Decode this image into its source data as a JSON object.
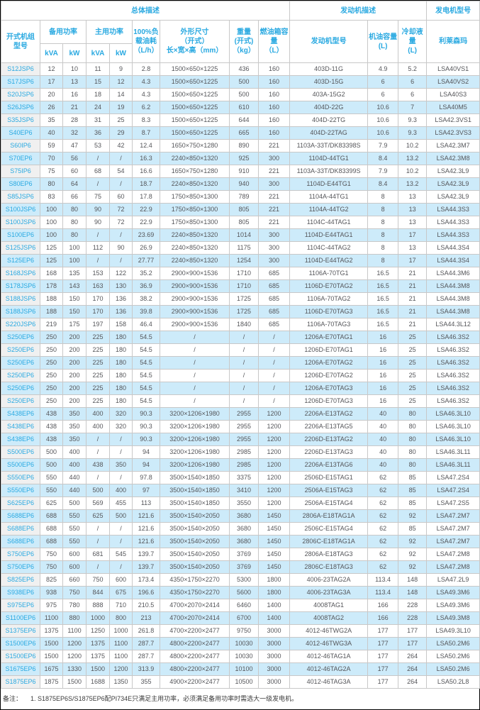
{
  "colors": {
    "accent": "#29a9e1",
    "stripe_blue": "#cdebfa",
    "model_column_bg": "#f0f0f0",
    "grid_border": "#c8c8c8",
    "data_text": "#55565a"
  },
  "table": {
    "group_headers": {
      "overall": "总体描述",
      "engine": "发动机描述",
      "alternator": "发电机型号"
    },
    "headers": {
      "model": "开式机组\n型号",
      "standby_power": "备用功率",
      "prime_power": "主用功率",
      "kva": "kVA",
      "kw": "kW",
      "fuel_consumption": "100%负\n载油耗\n（L/h）",
      "dimensions": "外形尺寸\n（开式）\n长×宽×高（mm）",
      "weight": "重量\n(开式)\n（kg）",
      "fuel_tank": "燃油箱容\n量\n（L）",
      "engine_model": "发动机型号",
      "oil_capacity": "机油容量\n(L)",
      "coolant_capacity": "冷却液量\n(L)",
      "alternator_brand": "利莱森玛"
    },
    "rows": [
      [
        "S12JSP6",
        "12",
        "10",
        "11",
        "9",
        "2.8",
        "1500×650×1225",
        "436",
        "160",
        "403D-11G",
        "4.9",
        "5.2",
        "LSA40VS1"
      ],
      [
        "S17JSP6",
        "17",
        "13",
        "15",
        "12",
        "4.3",
        "1500×650×1225",
        "500",
        "160",
        "403D-15G",
        "6",
        "6",
        "LSA40VS2"
      ],
      [
        "S20JSP6",
        "20",
        "16",
        "18",
        "14",
        "4.3",
        "1500×650×1225",
        "500",
        "160",
        "403A-15G2",
        "6",
        "6",
        "LSA40S3"
      ],
      [
        "S26JSP6",
        "26",
        "21",
        "24",
        "19",
        "6.2",
        "1500×650×1225",
        "610",
        "160",
        "404D-22G",
        "10.6",
        "7",
        "LSA40M5"
      ],
      [
        "S35JSP6",
        "35",
        "28",
        "31",
        "25",
        "8.3",
        "1500×650×1225",
        "644",
        "160",
        "404D-22TG",
        "10.6",
        "9.3",
        "LSA42.3VS1"
      ],
      [
        "S40EP6",
        "40",
        "32",
        "36",
        "29",
        "8.7",
        "1500×650×1225",
        "665",
        "160",
        "404D-22TAG",
        "10.6",
        "9.3",
        "LSA42.3VS3"
      ],
      [
        "S60IP6",
        "59",
        "47",
        "53",
        "42",
        "12.4",
        "1650×750×1280",
        "890",
        "221",
        "1103A-33T/DK83398S",
        "7.9",
        "10.2",
        "LSA42.3M7"
      ],
      [
        "S70EP6",
        "70",
        "56",
        "/",
        "/",
        "16.3",
        "2240×850×1320",
        "925",
        "300",
        "1104D-44TG1",
        "8.4",
        "13.2",
        "LSA42.3M8"
      ],
      [
        "S75IP6",
        "75",
        "60",
        "68",
        "54",
        "16.6",
        "1650×750×1280",
        "910",
        "221",
        "1103A-33T/DK83399S",
        "7.9",
        "10.2",
        "LSA42.3L9"
      ],
      [
        "S80EP6",
        "80",
        "64",
        "/",
        "/",
        "18.7",
        "2240×850×1320",
        "940",
        "300",
        "1104D-E44TG1",
        "8.4",
        "13.2",
        "LSA42.3L9"
      ],
      [
        "S85JSP6",
        "83",
        "66",
        "75",
        "60",
        "17.8",
        "1750×850×1300",
        "789",
        "221",
        "1104A-44TG1",
        "8",
        "13",
        "LSA42.3L9"
      ],
      [
        "S100JSP6",
        "100",
        "80",
        "90",
        "72",
        "22.9",
        "1750×850×1300",
        "805",
        "221",
        "1104A-44TG2",
        "8",
        "13",
        "LSA44.3S3"
      ],
      [
        "S100JSP6",
        "100",
        "80",
        "90",
        "72",
        "22.9",
        "1750×850×1300",
        "805",
        "221",
        "1104C-44TAG1",
        "8",
        "13",
        "LSA44.3S3"
      ],
      [
        "S100EP6",
        "100",
        "80",
        "/",
        "/",
        "23.69",
        "2240×850×1320",
        "1014",
        "300",
        "1104D-E44TAG1",
        "8",
        "17",
        "LSA44.3S3"
      ],
      [
        "S125JSP6",
        "125",
        "100",
        "112",
        "90",
        "26.9",
        "2240×850×1320",
        "1175",
        "300",
        "1104C-44TAG2",
        "8",
        "13",
        "LSA44.3S4"
      ],
      [
        "S125EP6",
        "125",
        "100",
        "/",
        "/",
        "27.77",
        "2240×850×1320",
        "1254",
        "300",
        "1104D-E44TAG2",
        "8",
        "17",
        "LSA44.3S4"
      ],
      [
        "S168JSP6",
        "168",
        "135",
        "153",
        "122",
        "35.2",
        "2900×900×1536",
        "1710",
        "685",
        "1106A-70TG1",
        "16.5",
        "21",
        "LSA44.3M6"
      ],
      [
        "S178JSP6",
        "178",
        "143",
        "163",
        "130",
        "36.9",
        "2900×900×1536",
        "1710",
        "685",
        "1106D-E70TAG2",
        "16.5",
        "21",
        "LSA44.3M8"
      ],
      [
        "S188JSP6",
        "188",
        "150",
        "170",
        "136",
        "38.2",
        "2900×900×1536",
        "1725",
        "685",
        "1106A-70TAG2",
        "16.5",
        "21",
        "LSA44.3M8"
      ],
      [
        "S188JSP6",
        "188",
        "150",
        "170",
        "136",
        "39.8",
        "2900×900×1536",
        "1725",
        "685",
        "1106D-E70TAG3",
        "16.5",
        "21",
        "LSA44.3M8"
      ],
      [
        "S220JSP6",
        "219",
        "175",
        "197",
        "158",
        "46.4",
        "2900×900×1536",
        "1840",
        "685",
        "1106A-70TAG3",
        "16.5",
        "21",
        "LSA44.3L12"
      ],
      [
        "S250EP6",
        "250",
        "200",
        "225",
        "180",
        "54.5",
        "/",
        "/",
        "/",
        "1206A-E70TAG1",
        "16",
        "25",
        "LSA46.3S2"
      ],
      [
        "S250EP6",
        "250",
        "200",
        "225",
        "180",
        "54.5",
        "/",
        "/",
        "/",
        "1206D-E70TAG1",
        "16",
        "25",
        "LSA46.3S2"
      ],
      [
        "S250EP6",
        "250",
        "200",
        "225",
        "180",
        "54.5",
        "/",
        "/",
        "/",
        "1206A-E70TAG2",
        "16",
        "25",
        "LSA46.3S2"
      ],
      [
        "S250EP6",
        "250",
        "200",
        "225",
        "180",
        "54.5",
        "/",
        "/",
        "/",
        "1206D-E70TAG2",
        "16",
        "25",
        "LSA46.3S2"
      ],
      [
        "S250EP6",
        "250",
        "200",
        "225",
        "180",
        "54.5",
        "/",
        "/",
        "/",
        "1206A-E70TAG3",
        "16",
        "25",
        "LSA46.3S2"
      ],
      [
        "S250EP6",
        "250",
        "200",
        "225",
        "180",
        "54.5",
        "/",
        "/",
        "/",
        "1206D-E70TAG3",
        "16",
        "25",
        "LSA46.3S2"
      ],
      [
        "S438EP6",
        "438",
        "350",
        "400",
        "320",
        "90.3",
        "3200×1206×1980",
        "2955",
        "1200",
        "2206A-E13TAG2",
        "40",
        "80",
        "LSA46.3L10"
      ],
      [
        "S438EP6",
        "438",
        "350",
        "400",
        "320",
        "90.3",
        "3200×1206×1980",
        "2955",
        "1200",
        "2206A-E13TAG5",
        "40",
        "80",
        "LSA46.3L10"
      ],
      [
        "S438EP6",
        "438",
        "350",
        "/",
        "/",
        "90.3",
        "3200×1206×1980",
        "2955",
        "1200",
        "2206D-E13TAG2",
        "40",
        "80",
        "LSA46.3L10"
      ],
      [
        "S500EP6",
        "500",
        "400",
        "/",
        "/",
        "94",
        "3200×1206×1980",
        "2985",
        "1200",
        "2206D-E13TAG3",
        "40",
        "80",
        "LSA46.3L11"
      ],
      [
        "S500EP6",
        "500",
        "400",
        "438",
        "350",
        "94",
        "3200×1206×1980",
        "2985",
        "1200",
        "2206A-E13TAG6",
        "40",
        "80",
        "LSA46.3L11"
      ],
      [
        "S550EP6",
        "550",
        "440",
        "/",
        "/",
        "97.8",
        "3500×1540×1850",
        "3375",
        "1200",
        "2506D-E15TAG1",
        "62",
        "85",
        "LSA47.2S4"
      ],
      [
        "S550EP6",
        "550",
        "440",
        "500",
        "400",
        "97",
        "3500×1540×1850",
        "3410",
        "1200",
        "2506A-E15TAG3",
        "62",
        "85",
        "LSA47.2S4"
      ],
      [
        "S625EP6",
        "625",
        "500",
        "569",
        "455",
        "113",
        "3500×1540×1850",
        "3550",
        "1200",
        "2506A-E15TAG4",
        "62",
        "85",
        "LSA47.2S5"
      ],
      [
        "S688EP6",
        "688",
        "550",
        "625",
        "500",
        "121.6",
        "3500×1540×2050",
        "3680",
        "1450",
        "2806A-E18TAG1A",
        "62",
        "92",
        "LSA47.2M7"
      ],
      [
        "S688EP6",
        "688",
        "550",
        "/",
        "/",
        "121.6",
        "3500×1540×2050",
        "3680",
        "1450",
        "2506C-E15TAG4",
        "62",
        "85",
        "LSA47.2M7"
      ],
      [
        "S688EP6",
        "688",
        "550",
        "/",
        "/",
        "121.6",
        "3500×1540×2050",
        "3680",
        "1450",
        "2806C-E18TAG1A",
        "62",
        "92",
        "LSA47.2M7"
      ],
      [
        "S750EP6",
        "750",
        "600",
        "681",
        "545",
        "139.7",
        "3500×1540×2050",
        "3769",
        "1450",
        "2806A-E18TAG3",
        "62",
        "92",
        "LSA47.2M8"
      ],
      [
        "S750EP6",
        "750",
        "600",
        "/",
        "/",
        "139.7",
        "3500×1540×2050",
        "3769",
        "1450",
        "2806C-E18TAG3",
        "62",
        "92",
        "LSA47.2M8"
      ],
      [
        "S825EP6",
        "825",
        "660",
        "750",
        "600",
        "173.4",
        "4350×1750×2270",
        "5300",
        "1800",
        "4006-23TAG2A",
        "113.4",
        "148",
        "LSA47.2L9"
      ],
      [
        "S938EP6",
        "938",
        "750",
        "844",
        "675",
        "196.6",
        "4350×1750×2270",
        "5600",
        "1800",
        "4006-23TAG3A",
        "113.4",
        "148",
        "LSA49.3M6"
      ],
      [
        "S975EP6",
        "975",
        "780",
        "888",
        "710",
        "210.5",
        "4700×2070×2414",
        "6460",
        "1400",
        "4008TAG1",
        "166",
        "228",
        "LSA49.3M6"
      ],
      [
        "S1100EP6",
        "1100",
        "880",
        "1000",
        "800",
        "213",
        "4700×2070×2414",
        "6700",
        "1400",
        "4008TAG2",
        "166",
        "228",
        "LSA49.3M8"
      ],
      [
        "S1375EP6",
        "1375",
        "1100",
        "1250",
        "1000",
        "261.8",
        "4700×2200×2477",
        "9750",
        "3000",
        "4012-46TWG2A",
        "177",
        "177",
        "LSA49.3L10"
      ],
      [
        "S1500EP6",
        "1500",
        "1200",
        "1375",
        "1100",
        "287.7",
        "4800×2200×2477",
        "10030",
        "3000",
        "4012-46TWG3A",
        "177",
        "177",
        "LSA50.2M6"
      ],
      [
        "S1500EP6",
        "1500",
        "1200",
        "1375",
        "1100",
        "287.7",
        "4800×2200×2477",
        "10030",
        "3000",
        "4012-46TAG1A",
        "177",
        "264",
        "LSA50.2M6"
      ],
      [
        "S1675EP6",
        "1675",
        "1330",
        "1500",
        "1200",
        "313.9",
        "4800×2200×2477",
        "10100",
        "3000",
        "4012-46TAG2A",
        "177",
        "264",
        "LSA50.2M6"
      ],
      [
        "S1875EP6",
        "1875",
        "1500",
        "1688",
        "1350",
        "355",
        "4900×2200×2477",
        "10500",
        "3000",
        "4012-46TAG3A",
        "177",
        "264",
        "LSA50.2L8"
      ]
    ]
  },
  "note": {
    "prefix": "备注：",
    "text": "1. S1875EP6S/S1875EP6配PI734E只满足主用功率，必须满足备用功率时需选大一级发电机。"
  }
}
